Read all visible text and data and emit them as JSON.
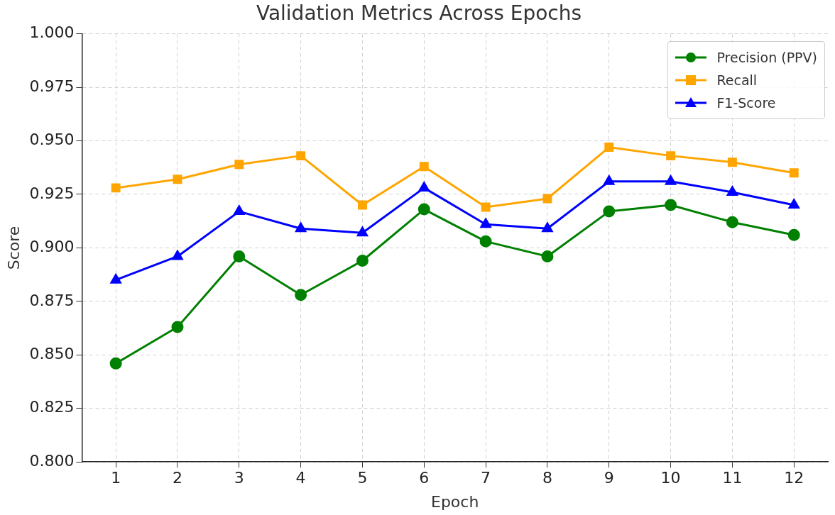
{
  "chart_data": {
    "type": "line",
    "title": "Validation Metrics Across Epochs",
    "xlabel": "Epoch",
    "ylabel": "Score",
    "x": [
      1,
      2,
      3,
      4,
      5,
      6,
      7,
      8,
      9,
      10,
      11,
      12
    ],
    "xlim": [
      0.45,
      12.55
    ],
    "xticks": [
      1,
      2,
      3,
      4,
      5,
      6,
      7,
      8,
      9,
      10,
      11,
      12
    ],
    "ylim": [
      0.8,
      1.0
    ],
    "yticks": [
      {
        "value": 0.8,
        "label": "0.800"
      },
      {
        "value": 0.825,
        "label": "0.825"
      },
      {
        "value": 0.85,
        "label": "0.850"
      },
      {
        "value": 0.875,
        "label": "0.875"
      },
      {
        "value": 0.9,
        "label": "0.900"
      },
      {
        "value": 0.925,
        "label": "0.925"
      },
      {
        "value": 0.95,
        "label": "0.950"
      },
      {
        "value": 0.975,
        "label": "0.975"
      },
      {
        "value": 1.0,
        "label": "1.000"
      }
    ],
    "grid": true,
    "legend": "top right",
    "line_style": "solid",
    "series": [
      {
        "name": "Precision (PPV)",
        "color": "#008000",
        "marker": "circle",
        "values": [
          0.846,
          0.863,
          0.896,
          0.878,
          0.894,
          0.918,
          0.903,
          0.896,
          0.917,
          0.92,
          0.912,
          0.906
        ]
      },
      {
        "name": "Recall",
        "color": "#ffa500",
        "marker": "square",
        "values": [
          0.928,
          0.932,
          0.939,
          0.943,
          0.92,
          0.938,
          0.919,
          0.923,
          0.947,
          0.943,
          0.94,
          0.935
        ]
      },
      {
        "name": "F1-Score",
        "color": "#0000ff",
        "marker": "triangle",
        "values": [
          0.885,
          0.896,
          0.917,
          0.909,
          0.907,
          0.928,
          0.911,
          0.909,
          0.931,
          0.931,
          0.926,
          0.92
        ]
      }
    ]
  }
}
